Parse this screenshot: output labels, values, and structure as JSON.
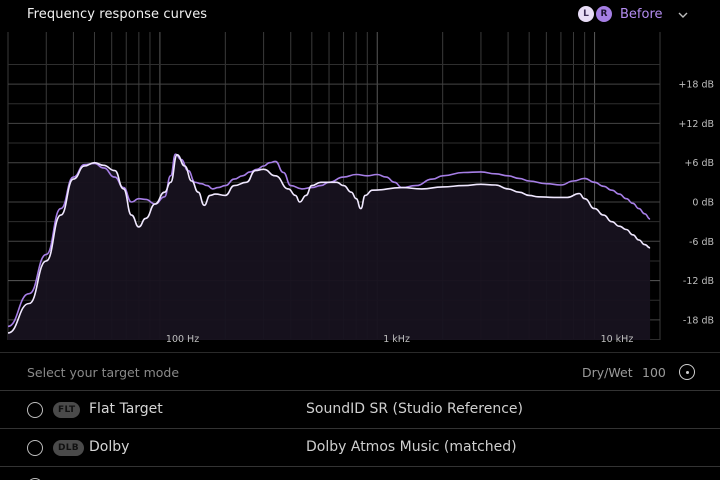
{
  "header": {
    "title": "Frequency response curves",
    "left_badge": "L",
    "right_badge": "R",
    "view_select": "Before",
    "chevron_icon": "chevron-down-icon"
  },
  "chart": {
    "x_ticks": [
      {
        "label": "100 Hz",
        "freq": 100
      },
      {
        "label": "1 kHz",
        "freq": 1000
      },
      {
        "label": "10 kHz",
        "freq": 10000
      }
    ],
    "y_ticks": [
      {
        "label": "+18 dB",
        "db": 18
      },
      {
        "label": "+12 dB",
        "db": 12
      },
      {
        "label": "+6 dB",
        "db": 6
      },
      {
        "label": "0 dB",
        "db": 0
      },
      {
        "label": "-6 dB",
        "db": -6
      },
      {
        "label": "-12 dB",
        "db": -12
      },
      {
        "label": "-18 dB",
        "db": -18
      }
    ],
    "colors": {
      "left": "#f0e8ff",
      "right": "#a67ee6",
      "grid": "#3a3a3a",
      "grid_major": "#5a5a5a"
    }
  },
  "chart_data": {
    "type": "line",
    "x_scale": "log",
    "xlim": [
      20,
      20000
    ],
    "ylim": [
      -24,
      24
    ],
    "grid": true,
    "series": [
      {
        "name": "L",
        "points": [
          [
            20,
            -20
          ],
          [
            25,
            -15.5
          ],
          [
            30,
            -9
          ],
          [
            35,
            -2
          ],
          [
            40,
            3.5
          ],
          [
            45,
            5.5
          ],
          [
            50,
            6
          ],
          [
            55,
            5.6
          ],
          [
            62,
            4.8
          ],
          [
            68,
            2
          ],
          [
            74,
            -2
          ],
          [
            80,
            -3.8
          ],
          [
            86,
            -2.5
          ],
          [
            95,
            -0.3
          ],
          [
            105,
            1.5
          ],
          [
            112,
            3
          ],
          [
            120,
            7.2
          ],
          [
            130,
            5.5
          ],
          [
            140,
            3.2
          ],
          [
            150,
            1.5
          ],
          [
            160,
            -0.5
          ],
          [
            170,
            1
          ],
          [
            180,
            1.2
          ],
          [
            200,
            1
          ],
          [
            220,
            2.5
          ],
          [
            250,
            3
          ],
          [
            275,
            4.8
          ],
          [
            300,
            5
          ],
          [
            340,
            4
          ],
          [
            390,
            2
          ],
          [
            420,
            1
          ],
          [
            440,
            0
          ],
          [
            470,
            1
          ],
          [
            500,
            2.5
          ],
          [
            550,
            3
          ],
          [
            650,
            3
          ],
          [
            700,
            2.5
          ],
          [
            760,
            1.5
          ],
          [
            800,
            0.5
          ],
          [
            840,
            -1
          ],
          [
            880,
            1
          ],
          [
            950,
            1.8
          ],
          [
            1300,
            2.2
          ],
          [
            1600,
            2
          ],
          [
            2000,
            2.3
          ],
          [
            2500,
            2.5
          ],
          [
            3000,
            2.7
          ],
          [
            3500,
            2.6
          ],
          [
            4000,
            2
          ],
          [
            4500,
            1.5
          ],
          [
            5000,
            1
          ],
          [
            5500,
            0.8
          ],
          [
            6500,
            0.7
          ],
          [
            7500,
            0.7
          ],
          [
            8500,
            1.3
          ],
          [
            9000,
            0.5
          ],
          [
            10000,
            -1
          ],
          [
            11000,
            -2
          ],
          [
            12000,
            -3
          ],
          [
            13000,
            -3.7
          ],
          [
            14000,
            -4.2
          ],
          [
            15000,
            -5
          ],
          [
            16000,
            -5.8
          ],
          [
            17000,
            -6.5
          ],
          [
            18000,
            -7
          ]
        ]
      },
      {
        "name": "R",
        "points": [
          [
            20,
            -19
          ],
          [
            25,
            -14
          ],
          [
            30,
            -8
          ],
          [
            35,
            -1
          ],
          [
            40,
            3.8
          ],
          [
            45,
            5.7
          ],
          [
            50,
            5.9
          ],
          [
            55,
            5.2
          ],
          [
            62,
            3.8
          ],
          [
            68,
            2.2
          ],
          [
            74,
            0
          ],
          [
            80,
            0.5
          ],
          [
            86,
            0.4
          ],
          [
            95,
            -0.3
          ],
          [
            105,
            0.8
          ],
          [
            112,
            4
          ],
          [
            118,
            7.3
          ],
          [
            125,
            6.5
          ],
          [
            135,
            4.8
          ],
          [
            145,
            3
          ],
          [
            155,
            2.8
          ],
          [
            165,
            2.5
          ],
          [
            175,
            2
          ],
          [
            185,
            2.2
          ],
          [
            200,
            2.5
          ],
          [
            220,
            3.5
          ],
          [
            240,
            4
          ],
          [
            260,
            4.6
          ],
          [
            280,
            5
          ],
          [
            300,
            5.5
          ],
          [
            320,
            6
          ],
          [
            340,
            6.2
          ],
          [
            370,
            4.5
          ],
          [
            400,
            2.5
          ],
          [
            450,
            2
          ],
          [
            500,
            2.2
          ],
          [
            550,
            2.5
          ],
          [
            600,
            3
          ],
          [
            700,
            3.8
          ],
          [
            800,
            4.2
          ],
          [
            900,
            4
          ],
          [
            1000,
            4.2
          ],
          [
            1100,
            3.8
          ],
          [
            1200,
            3
          ],
          [
            1300,
            2.2
          ],
          [
            1500,
            2.5
          ],
          [
            1800,
            3.5
          ],
          [
            2000,
            4
          ],
          [
            2500,
            4.5
          ],
          [
            3000,
            4.6
          ],
          [
            3500,
            4.3
          ],
          [
            4000,
            4
          ],
          [
            4500,
            3.6
          ],
          [
            5000,
            3.2
          ],
          [
            6000,
            2.8
          ],
          [
            7000,
            2.6
          ],
          [
            8000,
            3.2
          ],
          [
            9000,
            3.6
          ],
          [
            10000,
            3
          ],
          [
            11000,
            2.4
          ],
          [
            12000,
            1.8
          ],
          [
            13000,
            1.2
          ],
          [
            14000,
            0.5
          ],
          [
            15000,
            -0.2
          ],
          [
            16000,
            -1
          ],
          [
            17000,
            -1.8
          ],
          [
            18000,
            -2.6
          ]
        ]
      }
    ]
  },
  "mode_row": {
    "label": "Select your target mode",
    "drywet_label": "Dry/Wet",
    "drywet_value": "100"
  },
  "options": [
    {
      "tag": "FLT",
      "name": "Flat Target",
      "desc": "SoundID SR (Studio Reference)"
    },
    {
      "tag": "DLB",
      "name": "Dolby",
      "desc": "Dolby Atmos Music (matched)"
    }
  ]
}
